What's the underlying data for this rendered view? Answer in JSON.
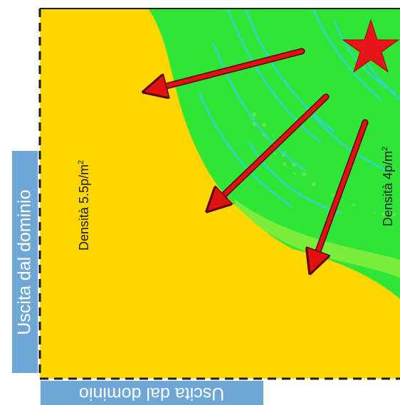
{
  "labels": {
    "exit_left": "Uscita dal dominio",
    "exit_bottom": "Uscita dal dominio",
    "density_high_prefix": "Densità 5.5p/m",
    "density_high_sup": "2",
    "density_low_prefix": "Densità 4p/m",
    "density_low_sup": "2"
  },
  "colors": {
    "high_density_zone": "#ffd700",
    "medium_zone": "#33e633",
    "low_zone": "#8cf03c",
    "path_lines": "#2fd6cf",
    "arrows": "#e0120f",
    "star": "#e8141c",
    "label_box": "#6ea7d6"
  },
  "icons": [
    "source-star-icon",
    "flow-arrow-icon"
  ]
}
